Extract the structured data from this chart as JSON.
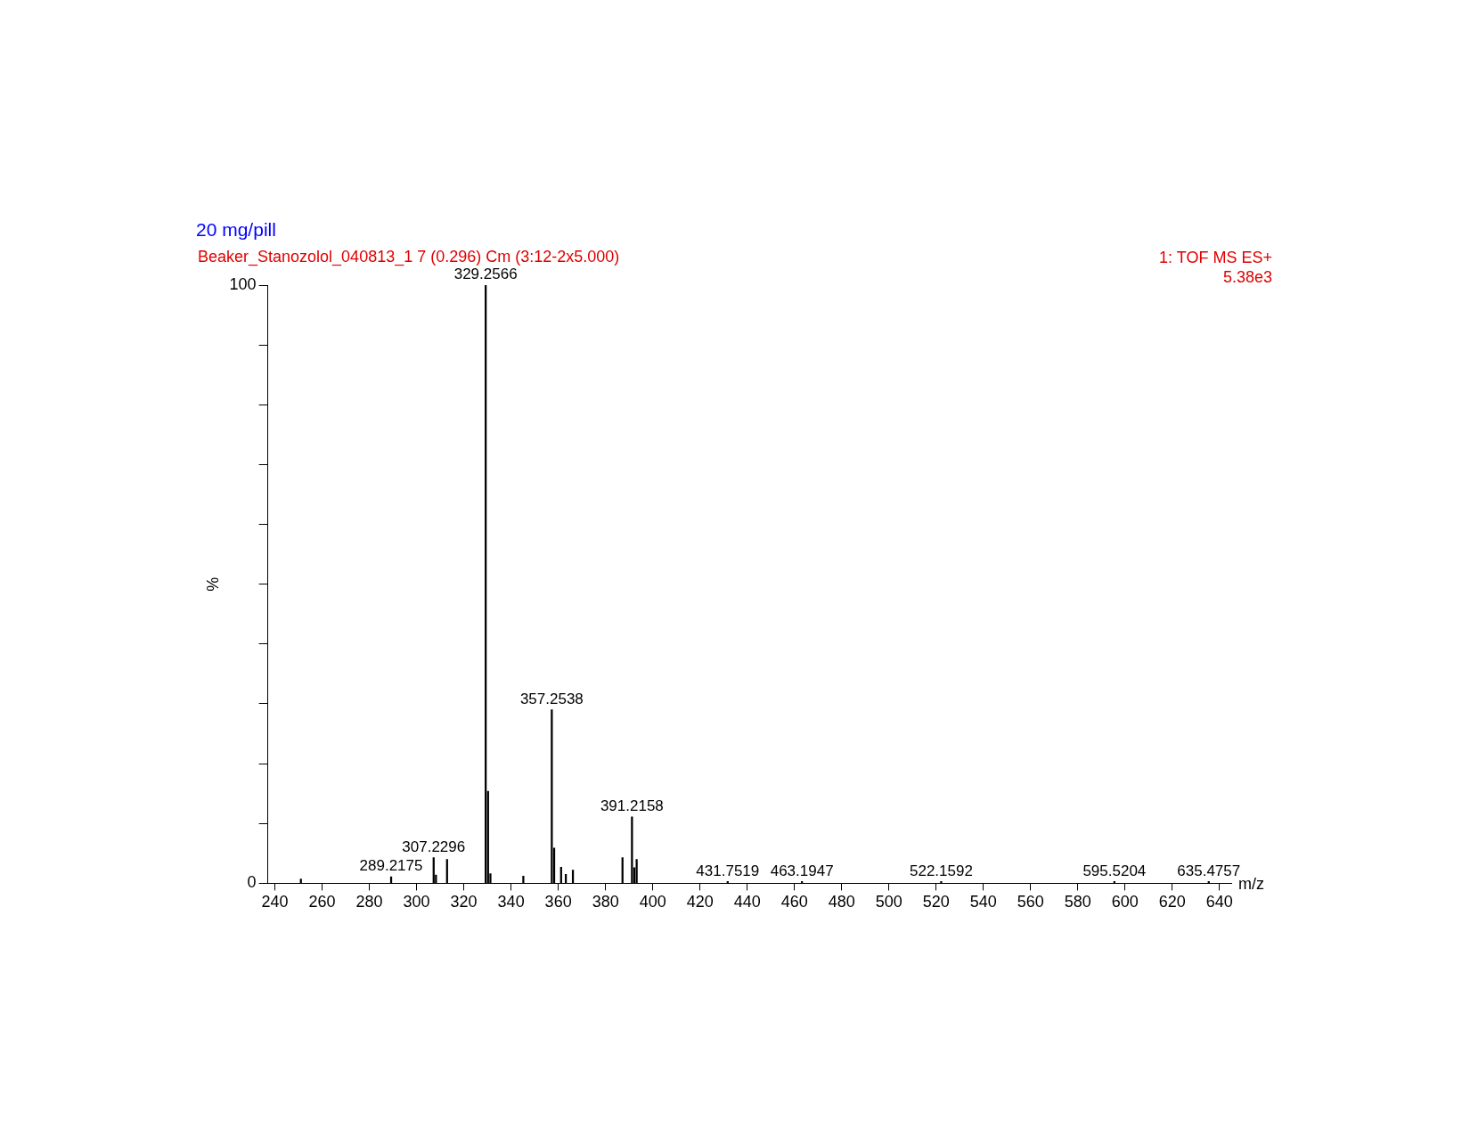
{
  "chart_data": {
    "type": "bar",
    "title": "20 mg/pill",
    "subtitle": "Beaker_Stanozolol_040813_1 7 (0.296) Cm (3:12-2x5.000)",
    "annotations": [
      "1: TOF MS ES+",
      "5.38e3",
      {
        "text": "289.2175",
        "x": 289.2175,
        "y": 1.1
      },
      {
        "text": "307.2296",
        "x": 307.2296,
        "y": 4.3
      },
      {
        "text": "329.2566",
        "x": 329.2566,
        "y": 100
      },
      {
        "text": "357.2538",
        "x": 357.2538,
        "y": 29.0
      },
      {
        "text": "391.2158",
        "x": 391.2158,
        "y": 11.1
      },
      {
        "text": "431.7519",
        "x": 431.7519,
        "y": 0.3
      },
      {
        "text": "463.1947",
        "x": 463.1947,
        "y": 0.3
      },
      {
        "text": "522.1592",
        "x": 522.1592,
        "y": 0.3
      },
      {
        "text": "595.5204",
        "x": 595.5204,
        "y": 0.3
      },
      {
        "text": "635.4757",
        "x": 635.4757,
        "y": 0.3
      }
    ],
    "xlabel": "m/z",
    "ylabel": "%",
    "x": [
      251,
      289.2175,
      307.2296,
      308.2,
      312.9,
      329.2566,
      330.26,
      331.26,
      345.2,
      357.2538,
      358.26,
      361.2,
      363.2,
      366.2,
      387.2,
      391.2158,
      392.2,
      393.2,
      431.7519,
      463.1947,
      522.1592,
      595.5204,
      635.4757
    ],
    "values": [
      0.7,
      1.1,
      4.3,
      1.4,
      4.0,
      100,
      15.4,
      1.6,
      1.2,
      29.0,
      5.9,
      2.7,
      1.5,
      2.2,
      4.3,
      11.1,
      2.6,
      4.0,
      0.3,
      0.3,
      0.3,
      0.3,
      0.3
    ],
    "color": "#000000",
    "xlim": [
      237,
      645
    ],
    "xticks": [
      240,
      260,
      280,
      300,
      320,
      340,
      360,
      380,
      400,
      420,
      440,
      460,
      480,
      500,
      520,
      540,
      560,
      580,
      600,
      620,
      640
    ],
    "ylim": [
      0,
      100
    ],
    "yticks": [
      0,
      {
        "value": 10,
        "label": null
      },
      {
        "value": 20,
        "label": null
      },
      {
        "value": 30,
        "label": null
      },
      {
        "value": 40,
        "label": null
      },
      {
        "value": 50,
        "label": null
      },
      {
        "value": 60,
        "label": null
      },
      {
        "value": 70,
        "label": null
      },
      {
        "value": 80,
        "label": null
      },
      {
        "value": 90,
        "label": null
      },
      100
    ],
    "grid": false,
    "legend": false
  }
}
